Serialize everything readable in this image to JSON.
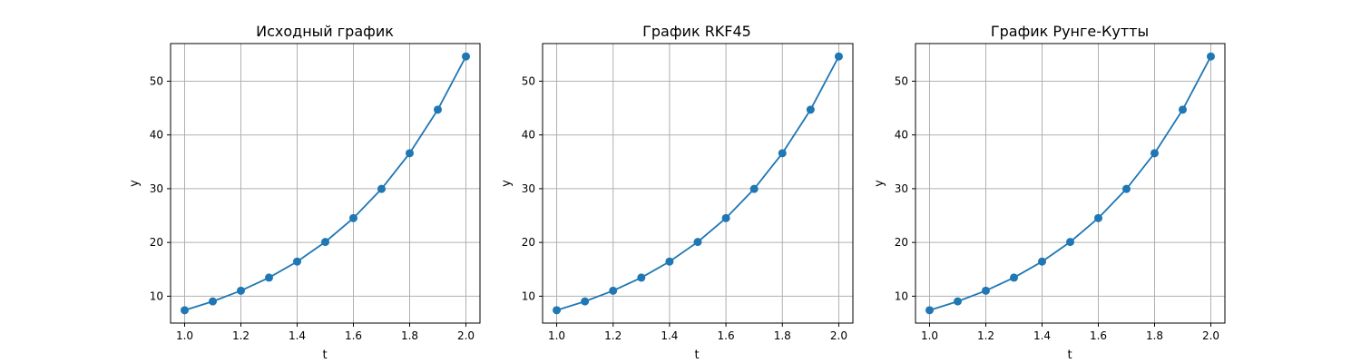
{
  "chart_data": [
    {
      "type": "line",
      "title": "Исходный график",
      "xlabel": "t",
      "ylabel": "y",
      "xlim": [
        0.95,
        2.05
      ],
      "ylim": [
        5.0,
        57.0
      ],
      "xticks": [
        "1.0",
        "1.2",
        "1.4",
        "1.6",
        "1.8",
        "2.0"
      ],
      "yticks": [
        "10",
        "20",
        "30",
        "40",
        "50"
      ],
      "grid": true,
      "marker": "o",
      "color": "#1f77b4",
      "x": [
        1.0,
        1.1,
        1.2,
        1.3,
        1.4,
        1.5,
        1.6,
        1.7,
        1.8,
        1.9,
        2.0
      ],
      "y": [
        7.39,
        9.03,
        11.02,
        13.46,
        16.44,
        20.09,
        24.53,
        29.96,
        36.6,
        44.7,
        54.6
      ]
    },
    {
      "type": "line",
      "title": "График RKF45",
      "xlabel": "t",
      "ylabel": "y",
      "xlim": [
        0.95,
        2.05
      ],
      "ylim": [
        5.0,
        57.0
      ],
      "xticks": [
        "1.0",
        "1.2",
        "1.4",
        "1.6",
        "1.8",
        "2.0"
      ],
      "yticks": [
        "10",
        "20",
        "30",
        "40",
        "50"
      ],
      "grid": true,
      "marker": "o",
      "color": "#1f77b4",
      "x": [
        1.0,
        1.1,
        1.2,
        1.3,
        1.4,
        1.5,
        1.6,
        1.7,
        1.8,
        1.9,
        2.0
      ],
      "y": [
        7.39,
        9.03,
        11.02,
        13.46,
        16.44,
        20.09,
        24.53,
        29.96,
        36.6,
        44.7,
        54.6
      ]
    },
    {
      "type": "line",
      "title": "График Рунге-Кутты",
      "xlabel": "t",
      "ylabel": "y",
      "xlim": [
        0.95,
        2.05
      ],
      "ylim": [
        5.0,
        57.0
      ],
      "xticks": [
        "1.0",
        "1.2",
        "1.4",
        "1.6",
        "1.8",
        "2.0"
      ],
      "yticks": [
        "10",
        "20",
        "30",
        "40",
        "50"
      ],
      "grid": true,
      "marker": "o",
      "color": "#1f77b4",
      "x": [
        1.0,
        1.1,
        1.2,
        1.3,
        1.4,
        1.5,
        1.6,
        1.7,
        1.8,
        1.9,
        2.0
      ],
      "y": [
        7.39,
        9.03,
        11.02,
        13.46,
        16.44,
        20.09,
        24.53,
        29.96,
        36.6,
        44.7,
        54.6
      ]
    }
  ]
}
